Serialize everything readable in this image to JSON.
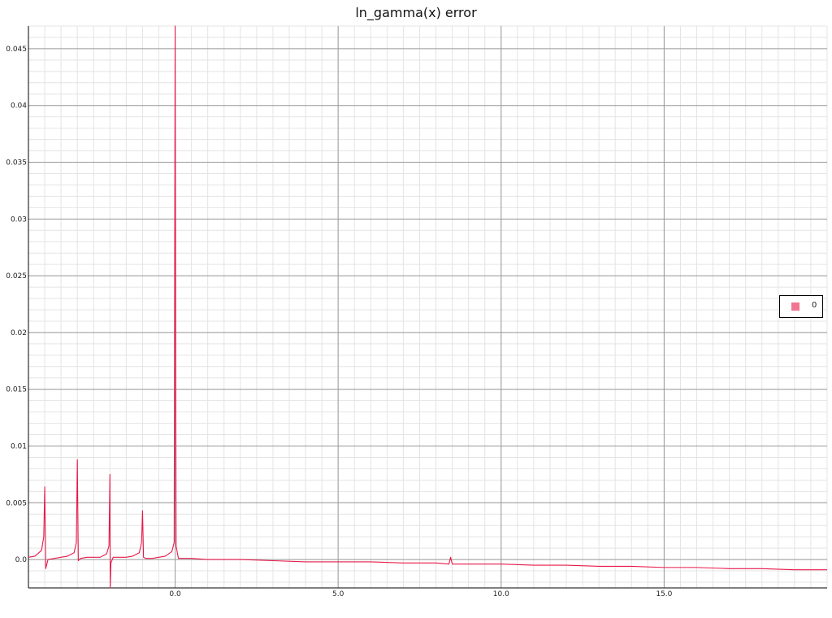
{
  "chart_data": {
    "type": "line",
    "title": "ln_gamma(x) error",
    "xlabel": "",
    "ylabel": "",
    "xlim": [
      -4.5,
      20
    ],
    "ylim": [
      -0.0025,
      0.047
    ],
    "grid": true,
    "legend_position": "right",
    "x_ticks": [
      {
        "value": 0,
        "label": "0.0"
      },
      {
        "value": 5,
        "label": "5.0"
      },
      {
        "value": 10,
        "label": "10.0"
      },
      {
        "value": 15,
        "label": "15.0"
      }
    ],
    "y_ticks": [
      {
        "value": 0,
        "label": "0.0"
      },
      {
        "value": 0.005,
        "label": "0.005"
      },
      {
        "value": 0.01,
        "label": "0.01"
      },
      {
        "value": 0.015,
        "label": "0.015"
      },
      {
        "value": 0.02,
        "label": "0.02"
      },
      {
        "value": 0.025,
        "label": "0.025"
      },
      {
        "value": 0.03,
        "label": "0.03"
      },
      {
        "value": 0.035,
        "label": "0.035"
      },
      {
        "value": 0.04,
        "label": "0.04"
      },
      {
        "value": 0.045,
        "label": "0.045"
      }
    ],
    "series": [
      {
        "name": "0",
        "color": "#e8194a",
        "x": [
          -4.5,
          -4.3,
          -4.1,
          -4.03,
          -4.0,
          -3.97,
          -3.9,
          -3.7,
          -3.5,
          -3.3,
          -3.1,
          -3.03,
          -3.0,
          -2.97,
          -2.9,
          -2.7,
          -2.5,
          -2.3,
          -2.1,
          -2.03,
          -2.0,
          -1.99,
          -1.97,
          -1.9,
          -1.7,
          -1.5,
          -1.3,
          -1.1,
          -1.03,
          -1.0,
          -0.97,
          -0.9,
          -0.7,
          -0.5,
          -0.3,
          -0.1,
          -0.03,
          0.0,
          0.03,
          0.1,
          0.5,
          1.0,
          2.0,
          3.0,
          4.0,
          5.0,
          6.0,
          7.0,
          8.0,
          8.4,
          8.45,
          8.5,
          9.0,
          10.0,
          11.0,
          12.0,
          13.0,
          14.0,
          15.0,
          16.0,
          17.0,
          18.0,
          19.0,
          19.5,
          20.0
        ],
        "y": [
          0.0002,
          0.0003,
          0.0008,
          0.002,
          0.0064,
          -0.0008,
          0.0,
          0.0001,
          0.0002,
          0.0003,
          0.0006,
          0.0015,
          0.0088,
          -0.0001,
          0.0001,
          0.0002,
          0.0002,
          0.0002,
          0.0005,
          0.0012,
          0.0075,
          -0.0025,
          -0.0003,
          0.0002,
          0.0002,
          0.0002,
          0.0003,
          0.0006,
          0.0015,
          0.0043,
          0.0002,
          0.0001,
          0.0001,
          0.0002,
          0.0003,
          0.0007,
          0.0015,
          0.047,
          0.0012,
          0.0001,
          0.0001,
          0.0,
          0.0,
          -0.0001,
          -0.0002,
          -0.0002,
          -0.0002,
          -0.0003,
          -0.0003,
          -0.0004,
          0.0002,
          -0.0004,
          -0.0004,
          -0.0004,
          -0.0005,
          -0.0005,
          -0.0006,
          -0.0006,
          -0.0007,
          -0.0007,
          -0.0008,
          -0.0008,
          -0.0009,
          -0.0009,
          -0.0009
        ]
      }
    ]
  }
}
